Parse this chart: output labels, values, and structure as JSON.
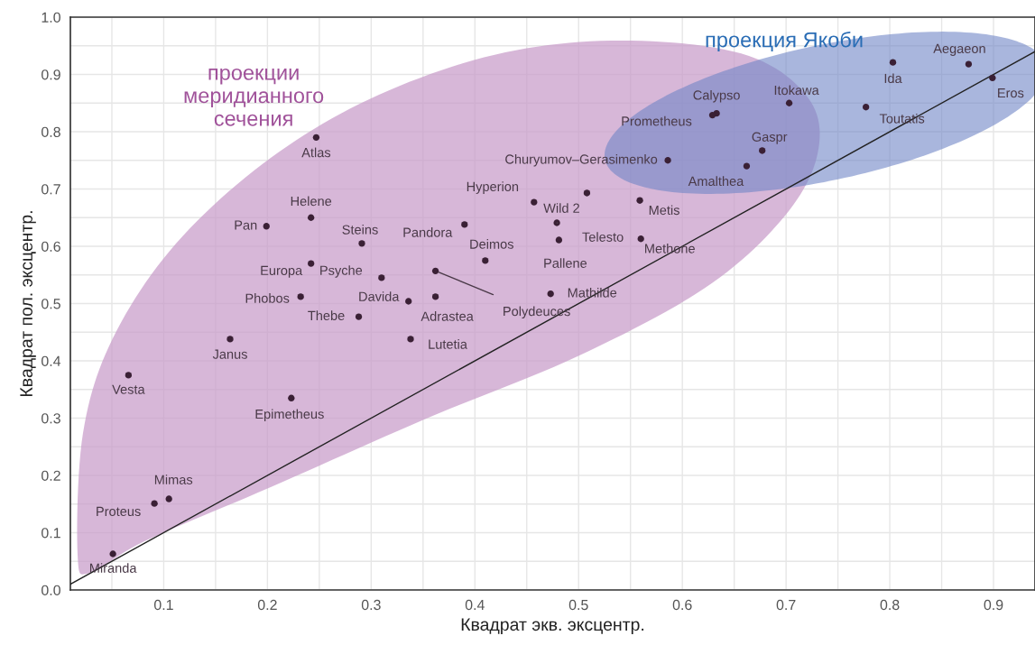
{
  "chart_data": {
    "type": "scatter",
    "xlabel": "Квадрат экв. эксцентр.",
    "ylabel": "Квадрат пол. эксцентр.",
    "xlim": [
      0.01,
      0.94
    ],
    "ylim": [
      0,
      1.0
    ],
    "xticks": [
      0.1,
      0.2,
      0.3,
      0.4,
      0.5,
      0.6,
      0.7,
      0.8,
      0.9
    ],
    "yticks": [
      {
        "value": 0,
        "label": "0.0"
      },
      0.1,
      0.2,
      0.3,
      0.4,
      0.5,
      0.6,
      0.7,
      0.8,
      0.9,
      {
        "value": 1.0,
        "label": "1.0"
      }
    ],
    "grid": true,
    "annotations": [
      "проекции\nмеридианного\nсечения",
      "проекция Якоби"
    ],
    "series": [
      {
        "marker": "circle",
        "color": "#3a2035",
        "x": [
          0.247,
          0.242,
          0.199,
          0.291,
          0.242,
          0.31,
          0.232,
          0.288,
          0.336,
          0.338,
          0.362,
          0.362,
          0.39,
          0.41,
          0.457,
          0.508,
          0.479,
          0.481,
          0.473,
          0.559,
          0.56,
          0.586,
          0.633,
          0.629,
          0.662,
          0.677,
          0.703,
          0.777,
          0.803,
          0.876,
          0.899,
          0.066,
          0.164,
          0.223,
          0.105,
          0.091,
          0.051
        ],
        "values": [
          0.79,
          0.65,
          0.635,
          0.605,
          0.57,
          0.545,
          0.512,
          0.477,
          0.504,
          0.438,
          0.512,
          0.557,
          0.638,
          0.575,
          0.677,
          0.693,
          0.641,
          0.611,
          0.517,
          0.68,
          0.613,
          0.75,
          0.832,
          0.829,
          0.74,
          0.767,
          0.85,
          0.843,
          0.921,
          0.918,
          0.894,
          0.375,
          0.438,
          0.335,
          0.159,
          0.151,
          0.063
        ],
        "value_labels": [
          "Atlas",
          "Helene",
          "Pan",
          "Steins",
          "Europa",
          "Psyche",
          "Phobos",
          "Thebe",
          "Davida",
          "Lutetia",
          "Adrastea",
          "Polydeuces",
          "Pandora",
          "Deimos",
          "Hyperion",
          "Wild 2",
          "Telesto",
          "Pallene",
          "Mathilde",
          "Metis",
          "Methone",
          "Churyumov–Gerasimenko",
          "Calypso",
          "Prometheus",
          "Amalthea",
          "Gaspr",
          "Itokawa",
          "Toutatis",
          "Ida",
          "Aegaeon",
          "Eros",
          "Vesta",
          "Janus",
          "Epimetheus",
          "Mimas",
          "Proteus",
          "Miranda"
        ]
      },
      {
        "type": "line",
        "color": "#222222",
        "x": [
          0.01,
          0.94
        ],
        "values": [
          0.01,
          0.94
        ]
      }
    ]
  }
}
